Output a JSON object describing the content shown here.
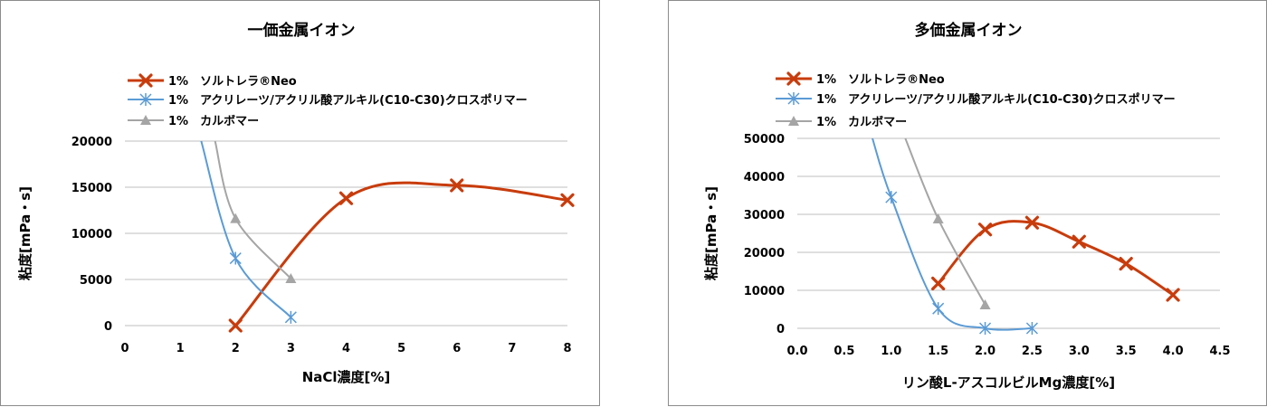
{
  "colors": {
    "soltorela": "#c83c0c",
    "acrylate": "#5b9bd5",
    "carbomer": "#a5a5a5",
    "grid": "#bfbfbf"
  },
  "chart_data": [
    {
      "type": "line",
      "title": "一価金属イオン",
      "xlabel": "NaCl濃度[%]",
      "ylabel": "粘度[mPa・s]",
      "xlim": [
        0,
        8
      ],
      "ylim": [
        0,
        20000
      ],
      "xticks": [
        "0",
        "1",
        "2",
        "3",
        "4",
        "5",
        "6",
        "7",
        "8"
      ],
      "yticks": [
        "0",
        "5000",
        "10000",
        "15000",
        "20000"
      ],
      "grid": true,
      "legend_position": "top-left",
      "series": [
        {
          "name": "1%　ソルトレラ®Neo",
          "marker": "x-thick",
          "x": [
            2,
            4,
            6,
            8
          ],
          "y": [
            0,
            13800,
            15200,
            13600
          ]
        },
        {
          "name": "1%　アクリレーツ/アクリル酸アルキル(C10-C30)クロスポリマー",
          "marker": "asterisk",
          "x": [
            1.38,
            2,
            3
          ],
          "y": [
            20000,
            7300,
            900
          ]
        },
        {
          "name": "1%　カルボマー",
          "marker": "triangle",
          "x": [
            1.63,
            2,
            3
          ],
          "y": [
            20000,
            11600,
            5100
          ]
        }
      ]
    },
    {
      "type": "line",
      "title": "多価金属イオン",
      "xlabel": "リン酸L-アスコルビルMg濃度[%]",
      "ylabel": "粘度[mPa・s]",
      "xlim": [
        0,
        4.5
      ],
      "ylim": [
        0,
        50000
      ],
      "xticks": [
        "0.0",
        "0.5",
        "1.0",
        "1.5",
        "2.0",
        "2.5",
        "3.0",
        "3.5",
        "4.0",
        "4.5"
      ],
      "yticks": [
        "0",
        "10000",
        "20000",
        "30000",
        "40000",
        "50000"
      ],
      "grid": true,
      "legend_position": "top-left",
      "series": [
        {
          "name": "1%　ソルトレラ®Neo",
          "marker": "x-thick",
          "x": [
            1.5,
            2.0,
            2.5,
            3.0,
            3.5,
            4.0
          ],
          "y": [
            11800,
            26000,
            27800,
            22800,
            17000,
            8800
          ]
        },
        {
          "name": "1%　アクリレーツ/アクリル酸アルキル(C10-C30)クロスポリマー",
          "marker": "asterisk",
          "x": [
            0.8,
            1.0,
            1.5,
            2.0,
            2.5
          ],
          "y": [
            50000,
            34500,
            5200,
            0,
            0
          ]
        },
        {
          "name": "1%　カルボマー",
          "marker": "triangle",
          "x": [
            1.15,
            1.5,
            2.0
          ],
          "y": [
            50000,
            28800,
            6200
          ]
        }
      ]
    }
  ]
}
